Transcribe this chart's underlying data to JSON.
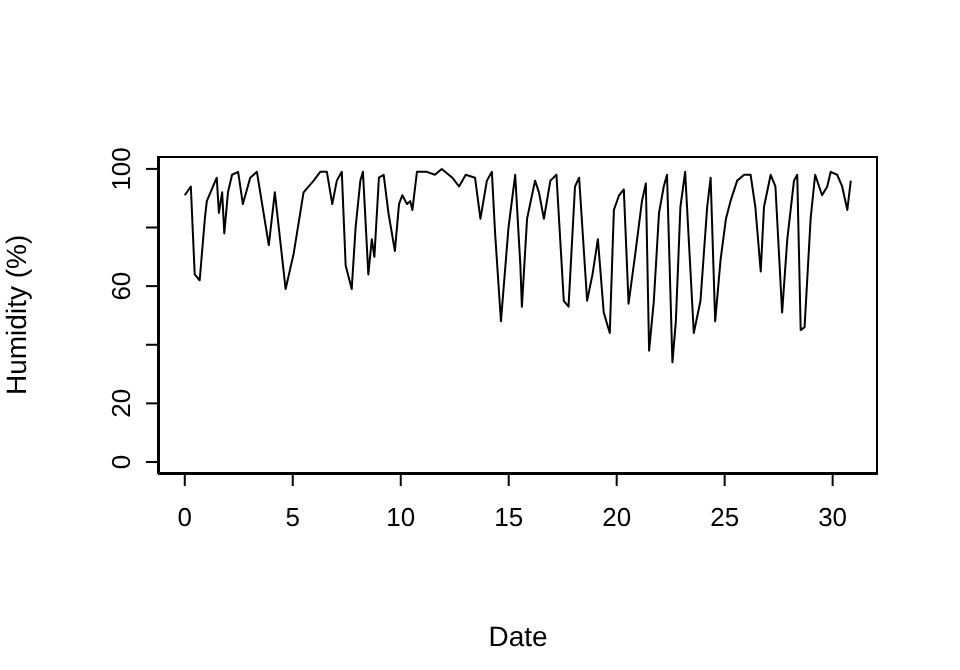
{
  "chart_data": {
    "type": "line",
    "xlabel": "Date",
    "ylabel": "Humidity (%)",
    "xlim": [
      -1.24,
      32.1
    ],
    "ylim": [
      -4.1,
      104.4
    ],
    "xticks": [
      0,
      5,
      10,
      15,
      20,
      25,
      30
    ],
    "yticks": [
      0,
      20,
      {
        "value": 40,
        "label": null
      },
      60,
      {
        "value": 80,
        "label": null
      },
      100
    ],
    "marker": "none",
    "line_style": "solid",
    "series": [
      {
        "color": "#000000",
        "x": [
          0,
          0.28,
          0.46,
          0.69,
          0.93,
          1.02,
          1.48,
          1.58,
          1.73,
          1.83,
          2.0,
          2.19,
          2.47,
          2.69,
          3.03,
          3.34,
          3.89,
          4.17,
          4.67,
          5.04,
          5.5,
          5.97,
          6.27,
          6.58,
          6.83,
          7.04,
          7.27,
          7.45,
          7.73,
          7.91,
          8.13,
          8.25,
          8.5,
          8.66,
          8.78,
          8.99,
          9.21,
          9.43,
          9.73,
          9.92,
          10.07,
          10.29,
          10.44,
          10.54,
          10.75,
          11.21,
          11.58,
          11.9,
          12.39,
          12.7,
          13.01,
          13.44,
          13.69,
          13.99,
          14.22,
          14.37,
          14.64,
          14.99,
          15.3,
          15.54,
          15.61,
          15.85,
          16.22,
          16.4,
          16.63,
          16.93,
          17.21,
          17.55,
          17.77,
          18.07,
          18.26,
          18.63,
          18.88,
          19.13,
          19.4,
          19.68,
          19.87,
          20.11,
          20.33,
          20.55,
          20.86,
          21.17,
          21.35,
          21.5,
          21.72,
          21.96,
          22.18,
          22.33,
          22.58,
          22.74,
          22.95,
          23.17,
          23.57,
          23.88,
          24.19,
          24.35,
          24.56,
          24.81,
          25.06,
          25.27,
          25.58,
          25.9,
          26.2,
          26.42,
          26.67,
          26.82,
          27.13,
          27.35,
          27.66,
          27.9,
          28.21,
          28.36,
          28.52,
          28.7,
          28.98,
          29.19,
          29.51,
          29.75,
          29.91,
          30.21,
          30.44,
          30.68,
          30.84
        ],
        "values": [
          91,
          94,
          64,
          62,
          83,
          89,
          97,
          85,
          92,
          78,
          92,
          98,
          99,
          88,
          97,
          99,
          74,
          92,
          59,
          71,
          92,
          96,
          99,
          99,
          88,
          96,
          99,
          67,
          59,
          80,
          96,
          99,
          64,
          76,
          70,
          97,
          98,
          85,
          72,
          88,
          91,
          88,
          89,
          86,
          99,
          99,
          98,
          100,
          97,
          94,
          98,
          97,
          83,
          96,
          99,
          78,
          48,
          80,
          98,
          67,
          53,
          83,
          96,
          92,
          83,
          96,
          98,
          55,
          53,
          94,
          97,
          55,
          64,
          76,
          51,
          44,
          86,
          91,
          93,
          54,
          71,
          89,
          95,
          38,
          55,
          85,
          94,
          98,
          34,
          48,
          87,
          99,
          44,
          55,
          87,
          97,
          48,
          69,
          83,
          89,
          96,
          98,
          98,
          87,
          65,
          87,
          98,
          94,
          51,
          76,
          96,
          98,
          45,
          46,
          83,
          98,
          91,
          94,
          99,
          98,
          94,
          86,
          96
        ]
      }
    ]
  }
}
